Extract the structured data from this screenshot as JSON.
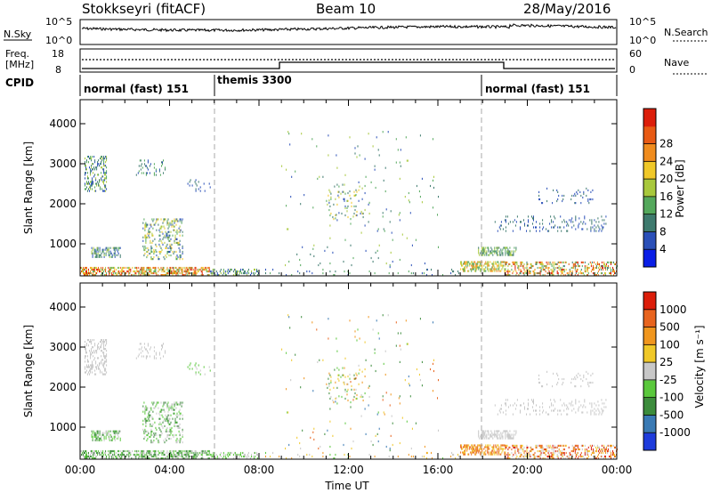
{
  "header": {
    "station": "Stokkseyri (fitACF)",
    "beam": "Beam 10",
    "date": "28/May/2016"
  },
  "noise_panel": {
    "left_label": "N.Sky",
    "right_label": "N.Search",
    "left_ticks": [
      "10^5",
      "10^0"
    ],
    "right_ticks": [
      "10^5",
      "10^0"
    ]
  },
  "freq_panel": {
    "left_label_1": "Freq.",
    "left_label_2": "[MHz]",
    "left_ticks": [
      "18",
      "8"
    ],
    "right_label": "Nave",
    "right_ticks": [
      "60",
      "0"
    ]
  },
  "cpid": {
    "label": "CPID",
    "segments": [
      {
        "name": "normal (fast) 151",
        "start": 0
      },
      {
        "name": "themis 3300",
        "start": 6
      },
      {
        "name": "normal (fast) 151",
        "start": 18
      }
    ]
  },
  "chart_data": [
    {
      "type": "heatmap",
      "panel": "power",
      "ylabel": "Slant Range [km]",
      "y_ticks": [
        "1000",
        "2000",
        "3000",
        "4000"
      ],
      "ylim": [
        200,
        4600
      ],
      "xlim": [
        0,
        24
      ],
      "x_ticks": [
        "00:00",
        "04:00",
        "08:00",
        "12:00",
        "16:00",
        "20:00",
        "00:00"
      ],
      "colorbar": {
        "label": "Power [dB]",
        "ticks": [
          "4",
          "8",
          "12",
          "16",
          "20",
          "24",
          "28"
        ],
        "colors": [
          "#0a1ee6",
          "#2a4fb8",
          "#3e7a6e",
          "#54a85c",
          "#a8c83c",
          "#f0c828",
          "#f08c1e",
          "#e85a14",
          "#dc1e0a"
        ]
      }
    },
    {
      "type": "heatmap",
      "panel": "velocity",
      "ylabel": "Slant Range [km]",
      "y_ticks": [
        "1000",
        "2000",
        "3000",
        "4000"
      ],
      "ylim": [
        200,
        4600
      ],
      "xlim": [
        0,
        24
      ],
      "x_ticks": [
        "00:00",
        "04:00",
        "08:00",
        "12:00",
        "16:00",
        "20:00",
        "00:00"
      ],
      "xlabel": "Time UT",
      "colorbar": {
        "label": "Velocity [m s⁻¹]",
        "ticks": [
          "1000",
          "500",
          "100",
          "25",
          "-25",
          "-100",
          "-500",
          "-1000"
        ],
        "colors": [
          "#1e3cdc",
          "#3a7ab4",
          "#3c8c3c",
          "#5ac83c",
          "#c8c8c8",
          "#f0c828",
          "#f0961e",
          "#e8641e",
          "#dc1e0a"
        ]
      }
    }
  ]
}
